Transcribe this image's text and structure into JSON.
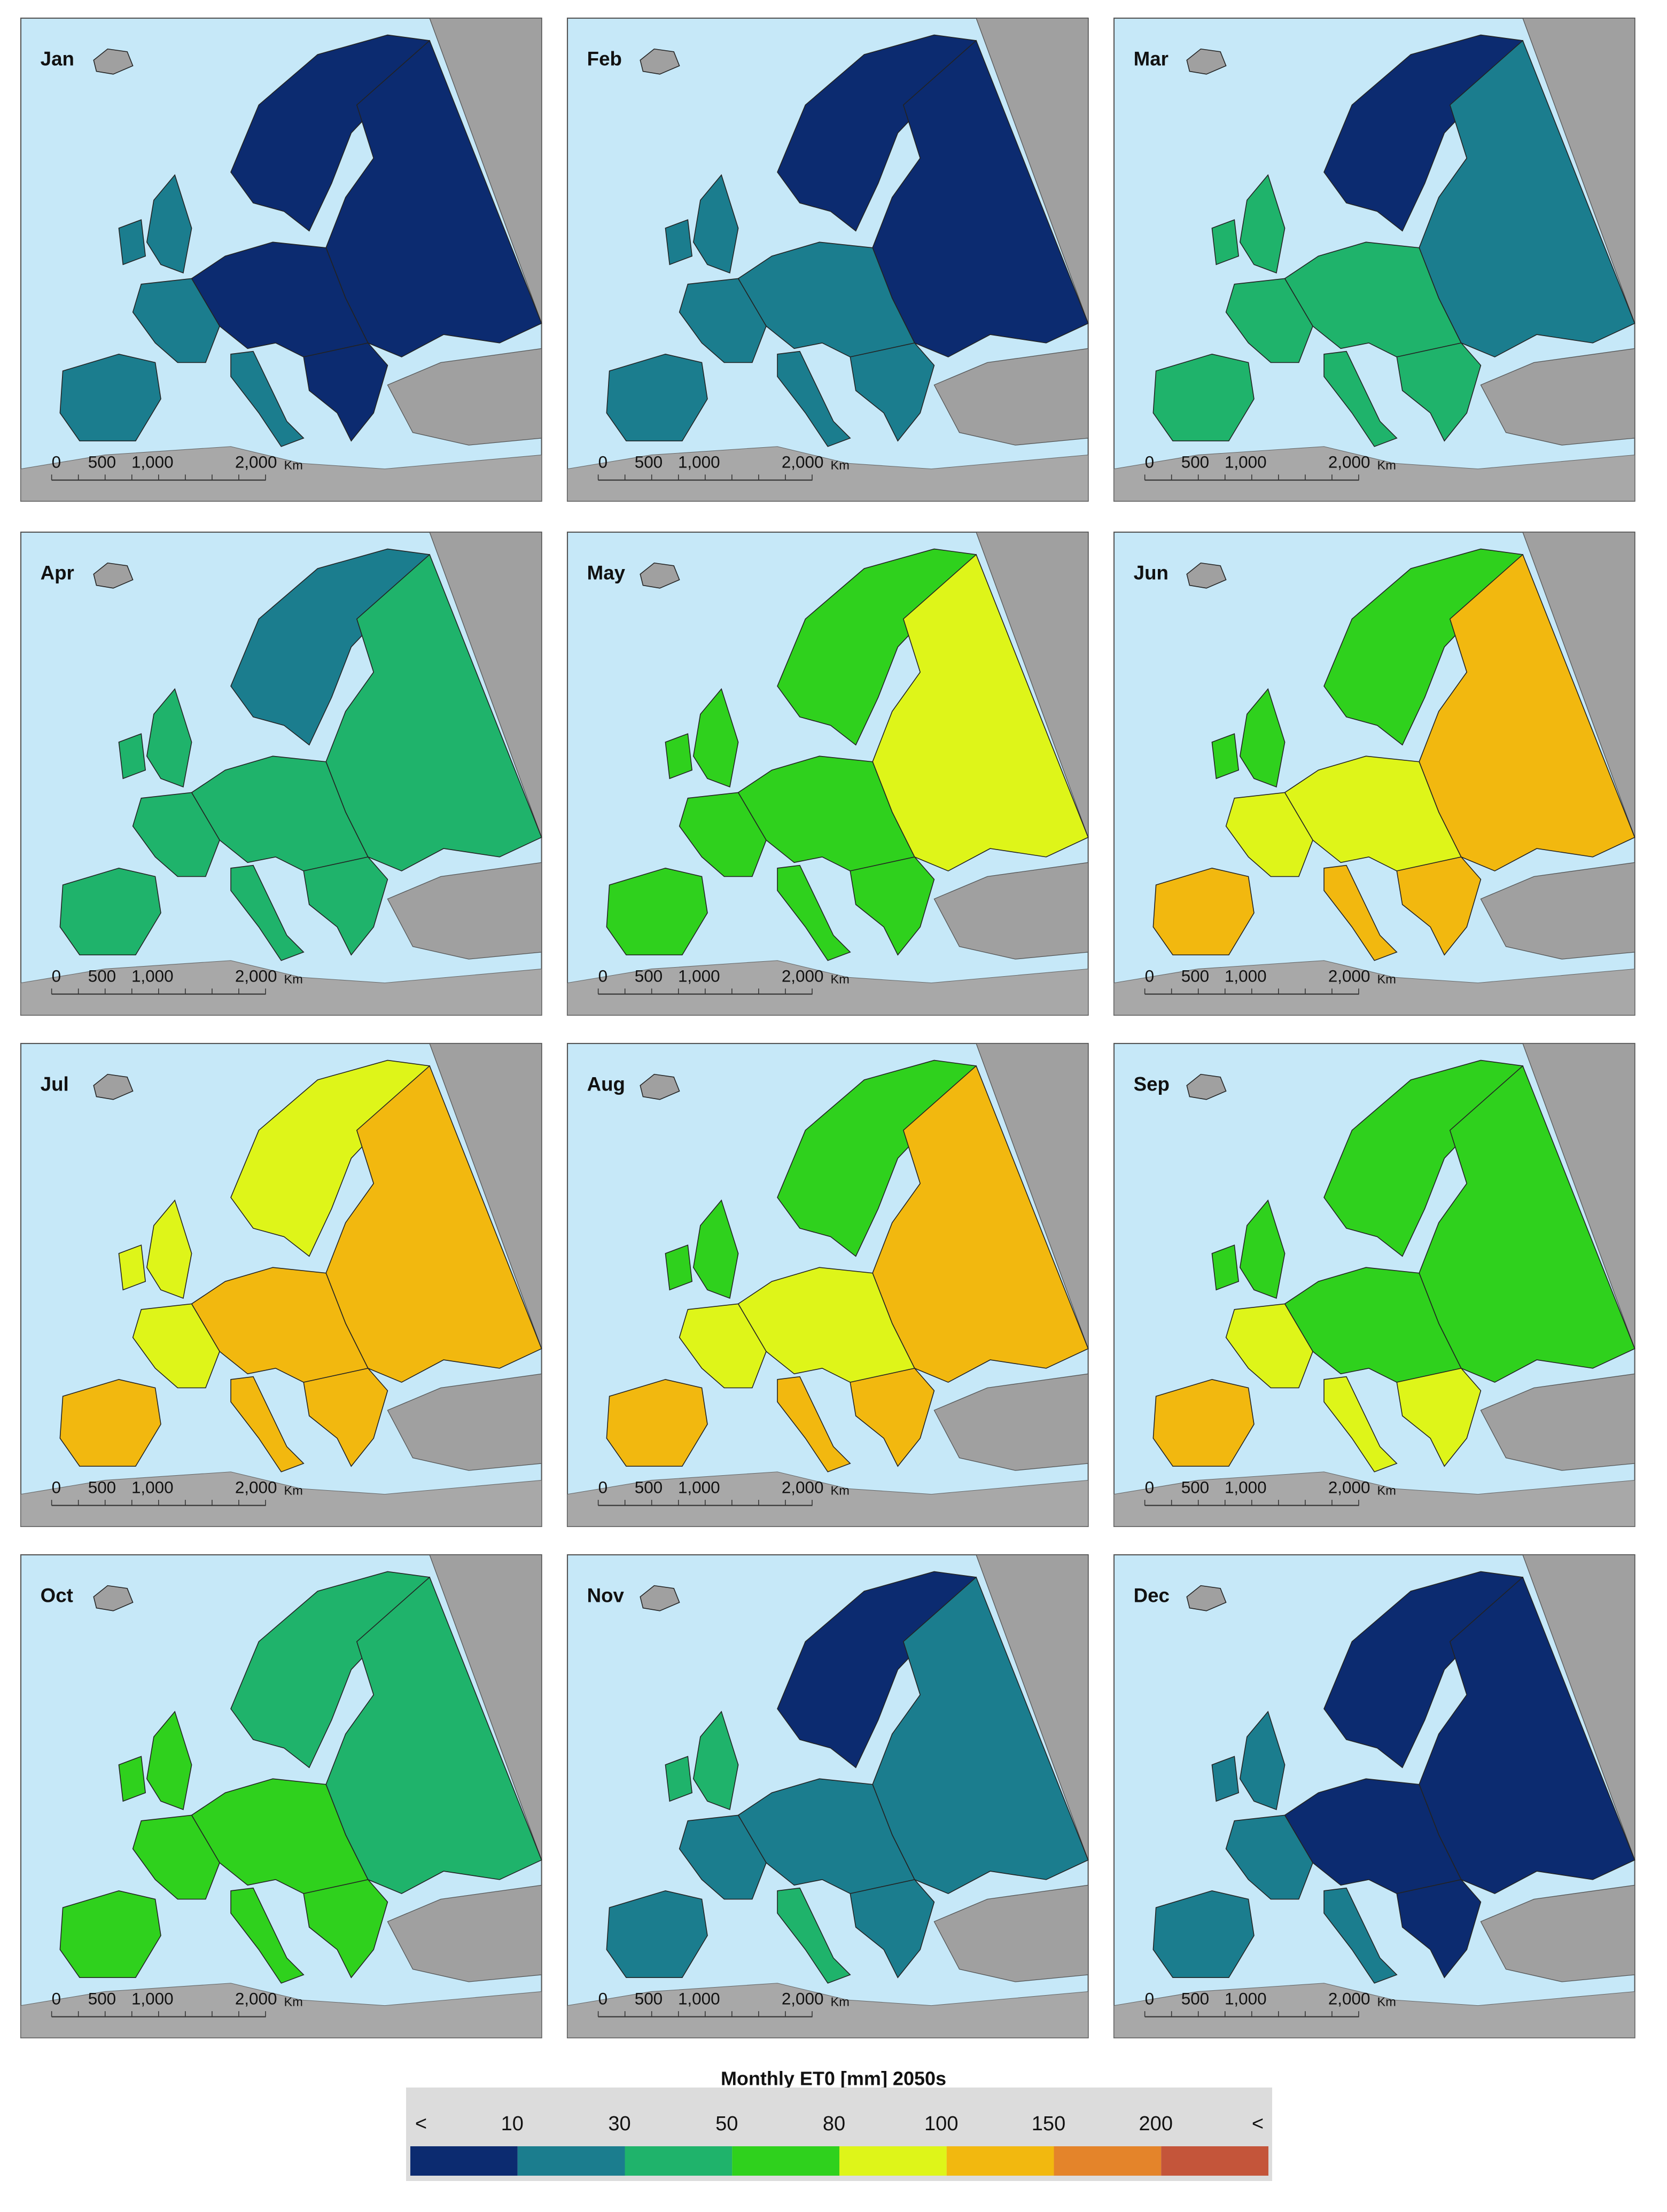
{
  "panels": [
    {
      "label": "Jan",
      "classes": [
        0,
        0,
        0,
        1,
        1,
        1,
        1,
        0
      ]
    },
    {
      "label": "Feb",
      "classes": [
        0,
        0,
        1,
        1,
        1,
        1,
        1,
        1
      ]
    },
    {
      "label": "Mar",
      "classes": [
        0,
        1,
        2,
        2,
        2,
        2,
        2,
        2
      ]
    },
    {
      "label": "Apr",
      "classes": [
        1,
        2,
        2,
        2,
        2,
        2,
        2,
        2
      ]
    },
    {
      "label": "May",
      "classes": [
        3,
        4,
        3,
        3,
        3,
        3,
        3,
        3
      ]
    },
    {
      "label": "Jun",
      "classes": [
        3,
        5,
        4,
        4,
        3,
        5,
        5,
        5
      ]
    },
    {
      "label": "Jul",
      "classes": [
        4,
        5,
        5,
        4,
        4,
        5,
        5,
        5
      ]
    },
    {
      "label": "Aug",
      "classes": [
        3,
        5,
        4,
        4,
        3,
        5,
        5,
        5
      ]
    },
    {
      "label": "Sep",
      "classes": [
        3,
        3,
        3,
        4,
        3,
        5,
        4,
        4
      ]
    },
    {
      "label": "Oct",
      "classes": [
        2,
        2,
        3,
        3,
        3,
        3,
        3,
        3
      ]
    },
    {
      "label": "Nov",
      "classes": [
        0,
        1,
        1,
        1,
        2,
        1,
        2,
        1
      ]
    },
    {
      "label": "Dec",
      "classes": [
        0,
        0,
        0,
        1,
        1,
        1,
        1,
        0
      ]
    }
  ],
  "scale_bar": {
    "labels": [
      "0",
      "500",
      "1,000",
      "2,000"
    ],
    "unit": "Km"
  },
  "legend": {
    "title": "Monthly ET0 [mm] 2050s",
    "low_label": "<",
    "high_label": "<",
    "ticks": [
      10,
      30,
      50,
      80,
      100,
      150,
      200
    ],
    "colors": [
      "#0c2b70",
      "#1b7d8e",
      "#1fb36b",
      "#2fd11d",
      "#def519",
      "#f2b80f",
      "#e4842a",
      "#c4553a"
    ]
  }
}
